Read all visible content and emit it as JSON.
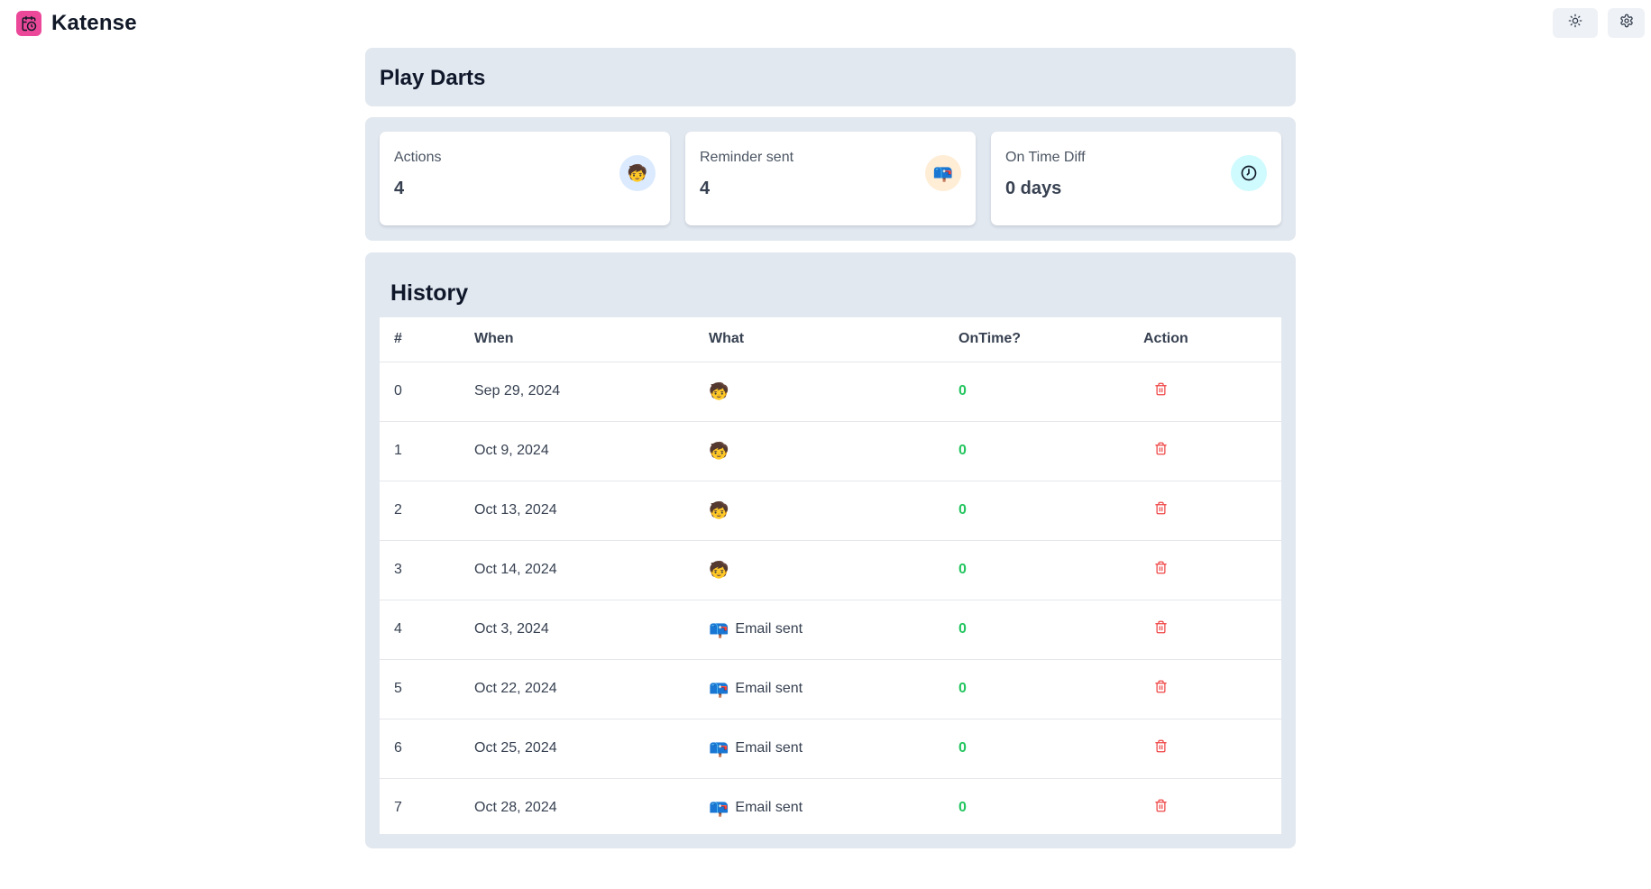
{
  "app": {
    "name": "Katense",
    "logo_icon": "calendar-clock-icon",
    "brand_color": "#ec4899"
  },
  "header": {
    "theme_toggle_icon": "sun-icon",
    "settings_icon": "gear-icon"
  },
  "page": {
    "title": "Play Darts"
  },
  "stats": [
    {
      "label": "Actions",
      "value": "4",
      "icon": "boy-face-emoji",
      "glyph": "🧒"
    },
    {
      "label": "Reminder sent",
      "value": "4",
      "icon": "mailbox-emoji",
      "glyph": "📪"
    },
    {
      "label": "On Time Diff",
      "value": "0 days",
      "icon": "clock-icon"
    }
  ],
  "history": {
    "title": "History",
    "columns": [
      "#",
      "When",
      "What",
      "OnTime?",
      "Action"
    ],
    "rows": [
      {
        "num": "0",
        "when": "Sep 29, 2024",
        "what_icon": "🧒",
        "what_text": "",
        "ontime": "0"
      },
      {
        "num": "1",
        "when": "Oct 9, 2024",
        "what_icon": "🧒",
        "what_text": "",
        "ontime": "0"
      },
      {
        "num": "2",
        "when": "Oct 13, 2024",
        "what_icon": "🧒",
        "what_text": "",
        "ontime": "0"
      },
      {
        "num": "3",
        "when": "Oct 14, 2024",
        "what_icon": "🧒",
        "what_text": "",
        "ontime": "0"
      },
      {
        "num": "4",
        "when": "Oct 3, 2024",
        "what_icon": "📪",
        "what_text": "Email sent",
        "ontime": "0"
      },
      {
        "num": "5",
        "when": "Oct 22, 2024",
        "what_icon": "📪",
        "what_text": "Email sent",
        "ontime": "0"
      },
      {
        "num": "6",
        "when": "Oct 25, 2024",
        "what_icon": "📪",
        "what_text": "Email sent",
        "ontime": "0"
      },
      {
        "num": "7",
        "when": "Oct 28, 2024",
        "what_icon": "📪",
        "what_text": "Email sent",
        "ontime": "0"
      }
    ],
    "action_icon": "trash-icon",
    "ontime_color": "#22c55e",
    "delete_color": "#ef4444"
  }
}
